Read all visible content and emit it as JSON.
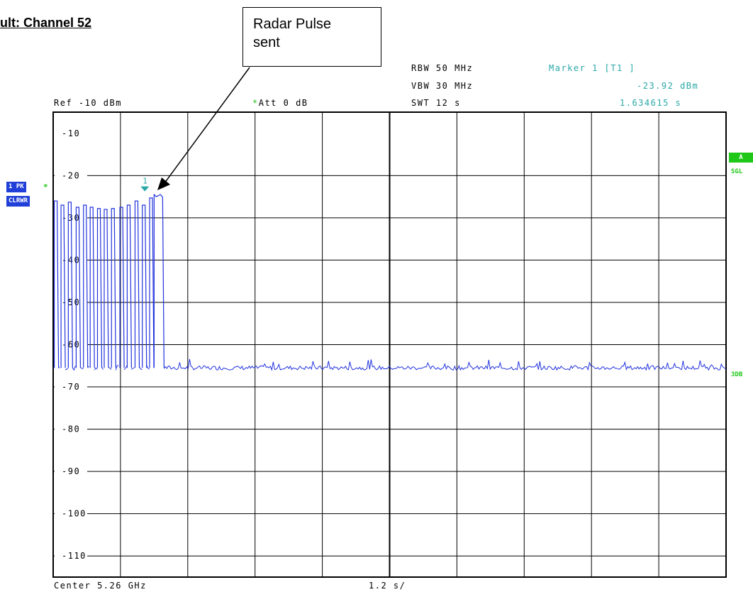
{
  "heading": "ult: Channel 52",
  "callout": {
    "line1": "Radar Pulse",
    "line2": "sent"
  },
  "settings": {
    "ref": "Ref  -10 dBm",
    "att_star": "*",
    "att": "Att   0 dB",
    "rbw": "RBW  50 MHz",
    "vbw": "VBW  30 MHz",
    "swt": "SWT  12 s"
  },
  "marker": {
    "label": "Marker 1 [T1 ]",
    "level": "-23.92 dBm",
    "time": "1.634615 s",
    "flag": "1"
  },
  "trace_tag": {
    "detector": "1 PK",
    "star": "*",
    "mode": "CLRWR"
  },
  "right_tags": {
    "a": "A",
    "sgl": "SGL",
    "db3": "3DB"
  },
  "footer": {
    "center": "Center 5.26 GHz",
    "span": "1.2 s/"
  },
  "colors": {
    "trace": "#2233dd",
    "marker": "#2aa7a7",
    "grid": "#000000",
    "status_green": "#1fc818"
  },
  "chart_data": {
    "type": "line",
    "ylim": [
      -115,
      -5
    ],
    "xlim": [
      0,
      12
    ],
    "x_divisions": 10,
    "y_ticks": [
      "-10",
      "-20",
      "-30",
      "-40",
      "-50",
      "-60",
      "-70",
      "-80",
      "-90",
      "-100",
      "-110"
    ],
    "y_tick_values": [
      -10,
      -20,
      -30,
      -40,
      -50,
      -60,
      -70,
      -80,
      -90,
      -100,
      -110
    ],
    "noise_floor_dbm": -65.5,
    "pulses": [
      {
        "t": 0.02,
        "peak": -26.0
      },
      {
        "t": 0.14,
        "peak": -27.0
      },
      {
        "t": 0.27,
        "peak": -26.3
      },
      {
        "t": 0.41,
        "peak": -27.5
      },
      {
        "t": 0.54,
        "peak": -27.0
      },
      {
        "t": 0.66,
        "peak": -27.5
      },
      {
        "t": 0.79,
        "peak": -27.8
      },
      {
        "t": 0.91,
        "peak": -28.0
      },
      {
        "t": 1.04,
        "peak": -27.8
      },
      {
        "t": 1.19,
        "peak": -27.5
      },
      {
        "t": 1.32,
        "peak": -27.0
      },
      {
        "t": 1.46,
        "peak": -26.0
      },
      {
        "t": 1.59,
        "peak": -27.0
      },
      {
        "t": 1.72,
        "peak": -25.3
      },
      {
        "t": 1.8,
        "peak": -24.5
      }
    ],
    "marker_point": {
      "t": 1.634615,
      "level": -23.92
    }
  }
}
